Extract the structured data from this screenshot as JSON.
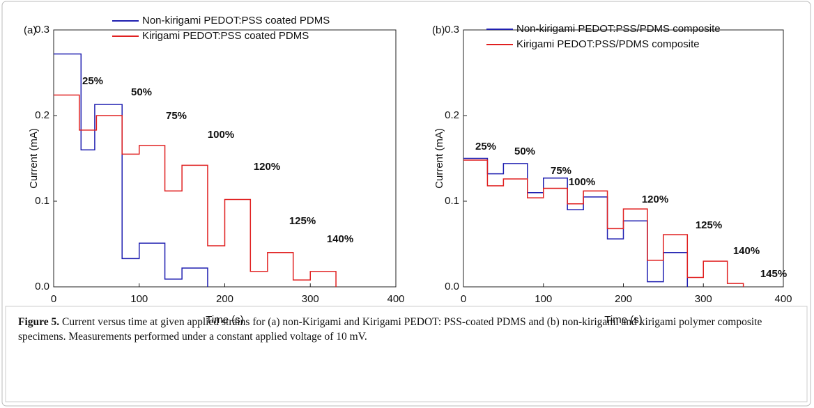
{
  "chart_data": [
    {
      "type": "line",
      "panel_label": "(a)",
      "x_label": "Time (s)",
      "y_label": "Current (mA)",
      "xlim": [
        0,
        400
      ],
      "xticks": [
        0,
        100,
        200,
        300,
        400
      ],
      "ylim": [
        0,
        0.3
      ],
      "yticks": [
        {
          "value": 0,
          "label": "0.0"
        },
        0.1,
        0.2,
        0.3
      ],
      "series": [
        {
          "name": "Non-kirigami PEDOT:PSS coated PDMS",
          "color": "#1f1fb0",
          "x": [
            0,
            32,
            32,
            48,
            48,
            80,
            80,
            100,
            100,
            130,
            130,
            150,
            150,
            180,
            180
          ],
          "values": [
            0.272,
            0.272,
            0.16,
            0.16,
            0.213,
            0.213,
            0.033,
            0.033,
            0.051,
            0.051,
            0.009,
            0.009,
            0.022,
            0.022,
            0
          ]
        },
        {
          "name": "Kirigami PEDOT:PSS coated PDMS",
          "color": "#e02020",
          "x": [
            0,
            30,
            30,
            50,
            50,
            80,
            80,
            100,
            100,
            130,
            130,
            150,
            150,
            180,
            180,
            200,
            200,
            230,
            230,
            250,
            250,
            280,
            280,
            300,
            300,
            330,
            330
          ],
          "values": [
            0.224,
            0.224,
            0.183,
            0.183,
            0.2,
            0.2,
            0.155,
            0.155,
            0.165,
            0.165,
            0.112,
            0.112,
            0.142,
            0.142,
            0.048,
            0.048,
            0.102,
            0.102,
            0.018,
            0.018,
            0.04,
            0.04,
            0.008,
            0.008,
            0.018,
            0.018,
            0
          ]
        }
      ],
      "annotations": [
        "25%",
        "50%",
        "75%",
        "100%",
        "120%",
        "125%",
        "140%"
      ]
    },
    {
      "type": "line",
      "panel_label": "(b)",
      "x_label": "Time (s)",
      "y_label": "Current (mA)",
      "xlim": [
        0,
        400
      ],
      "xticks": [
        0,
        100,
        200,
        300,
        400
      ],
      "ylim": [
        0,
        0.3
      ],
      "yticks": [
        {
          "value": 0,
          "label": "0.0"
        },
        0.1,
        0.2,
        0.3
      ],
      "series": [
        {
          "name": "Non-kirigami PEDOT:PSS/PDMS composite",
          "color": "#1f1fb0",
          "x": [
            0,
            30,
            30,
            50,
            50,
            80,
            80,
            100,
            100,
            130,
            130,
            150,
            150,
            180,
            180,
            200,
            200,
            230,
            230,
            250,
            250,
            280,
            280
          ],
          "values": [
            0.15,
            0.15,
            0.132,
            0.132,
            0.144,
            0.144,
            0.11,
            0.11,
            0.127,
            0.127,
            0.09,
            0.09,
            0.105,
            0.105,
            0.056,
            0.056,
            0.077,
            0.077,
            0.006,
            0.006,
            0.04,
            0.04,
            0
          ]
        },
        {
          "name": "Kirigami PEDOT:PSS/PDMS composite",
          "color": "#e02020",
          "x": [
            0,
            30,
            30,
            50,
            50,
            80,
            80,
            100,
            100,
            130,
            130,
            150,
            150,
            180,
            180,
            200,
            200,
            230,
            230,
            250,
            250,
            280,
            280,
            300,
            300,
            330,
            330,
            350,
            350
          ],
          "values": [
            0.148,
            0.148,
            0.118,
            0.118,
            0.126,
            0.126,
            0.104,
            0.104,
            0.115,
            0.115,
            0.097,
            0.097,
            0.112,
            0.112,
            0.068,
            0.068,
            0.091,
            0.091,
            0.031,
            0.031,
            0.061,
            0.061,
            0.011,
            0.011,
            0.03,
            0.03,
            0.004,
            0.004,
            0
          ]
        }
      ],
      "annotations": [
        "25%",
        "50%",
        "75%",
        "100%",
        "120%",
        "125%",
        "140%",
        "145%"
      ]
    }
  ],
  "caption": {
    "label": "Figure 5.",
    "text": "Current versus time at given applied strains for (a) non-Kirigami and Kirigami PEDOT: PSS-coated PDMS and (b) non-kirigami and kirigami polymer composite specimens. Measurements performed under a constant applied voltage of 10 mV."
  }
}
